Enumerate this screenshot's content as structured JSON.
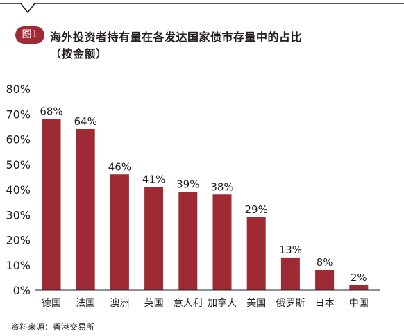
{
  "figure": {
    "badge": "图1",
    "title_line1": "海外投资者持有量在各发达国家债市存量中的占比",
    "title_line2": "（按金额）",
    "source": "资料来源：香港交易所"
  },
  "colors": {
    "bar": "#9e2a33",
    "badge": "#9e2a33",
    "text": "#231f20",
    "frame": "#231f20"
  },
  "chart_data": {
    "type": "bar",
    "categories": [
      "德国",
      "法国",
      "澳洲",
      "英国",
      "意大利",
      "加拿大",
      "美国",
      "俄罗斯",
      "日本",
      "中国"
    ],
    "values": [
      68,
      64,
      46,
      41,
      39,
      38,
      29,
      13,
      8,
      2
    ],
    "data_labels": [
      "68%",
      "64%",
      "46%",
      "41%",
      "39%",
      "38%",
      "29%",
      "13%",
      "8%",
      "2%"
    ],
    "y_ticks": [
      0,
      10,
      20,
      30,
      40,
      50,
      60,
      70,
      80
    ],
    "y_tick_labels": [
      "0%",
      "10%",
      "20%",
      "30%",
      "40%",
      "50%",
      "60%",
      "70%",
      "80%"
    ],
    "ylim": [
      0,
      80
    ],
    "grid": false,
    "legend": "none"
  }
}
